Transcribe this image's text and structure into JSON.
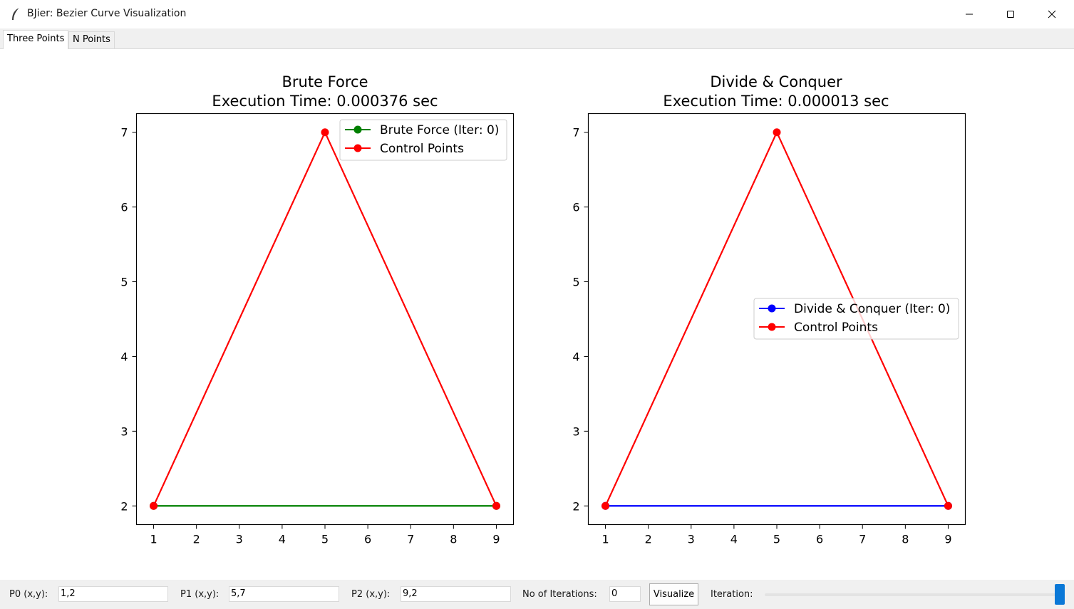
{
  "window": {
    "title": "BJier: Bezier Curve Visualization",
    "minimize_icon": "minimize-icon",
    "maximize_icon": "maximize-icon",
    "close_icon": "close-icon"
  },
  "tabs": [
    {
      "label": "Three Points",
      "active": true
    },
    {
      "label": "N Points",
      "active": false
    }
  ],
  "plots": [
    {
      "title_line1": "Brute Force",
      "title_line2": "Execution Time: 0.000376 sec",
      "legend": [
        "Brute Force (Iter: 0)",
        "Control Points"
      ]
    },
    {
      "title_line1": "Divide & Conquer",
      "title_line2": "Execution Time: 0.000013 sec",
      "legend": [
        "Divide & Conquer (Iter: 0)",
        "Control Points"
      ]
    }
  ],
  "chart_data": [
    {
      "type": "line",
      "title": "Brute Force\nExecution Time: 0.000376 sec",
      "xlim": [
        0.6,
        9.4
      ],
      "ylim": [
        1.75,
        7.25
      ],
      "x_ticks": [
        1,
        2,
        3,
        4,
        5,
        6,
        7,
        8,
        9
      ],
      "y_ticks": [
        2,
        3,
        4,
        5,
        6,
        7
      ],
      "legend_position": "upper right",
      "series": [
        {
          "name": "Brute Force (Iter: 0)",
          "color": "#008000",
          "points": [
            [
              1,
              2
            ],
            [
              9,
              2
            ]
          ]
        },
        {
          "name": "Control Points",
          "color": "#ff0000",
          "points": [
            [
              1,
              2
            ],
            [
              5,
              7
            ],
            [
              9,
              2
            ]
          ]
        }
      ]
    },
    {
      "type": "line",
      "title": "Divide & Conquer\nExecution Time: 0.000013 sec",
      "xlim": [
        0.6,
        9.4
      ],
      "ylim": [
        1.75,
        7.25
      ],
      "x_ticks": [
        1,
        2,
        3,
        4,
        5,
        6,
        7,
        8,
        9
      ],
      "y_ticks": [
        2,
        3,
        4,
        5,
        6,
        7
      ],
      "legend_position": "center right",
      "series": [
        {
          "name": "Divide & Conquer (Iter: 0)",
          "color": "#0000ff",
          "points": [
            [
              1,
              2
            ],
            [
              9,
              2
            ]
          ]
        },
        {
          "name": "Control Points",
          "color": "#ff0000",
          "points": [
            [
              1,
              2
            ],
            [
              5,
              7
            ],
            [
              9,
              2
            ]
          ]
        }
      ]
    }
  ],
  "controls": {
    "p0_label": "P0 (x,y):",
    "p0_value": "1,2",
    "p1_label": "P1 (x,y):",
    "p1_value": "5,7",
    "p2_label": "P2 (x,y):",
    "p2_value": "9,2",
    "iterations_label": "No of Iterations:",
    "iterations_value": "0",
    "visualize_label": "Visualize",
    "iteration_label": "Iteration:",
    "iteration_slider_level": 1.0
  }
}
